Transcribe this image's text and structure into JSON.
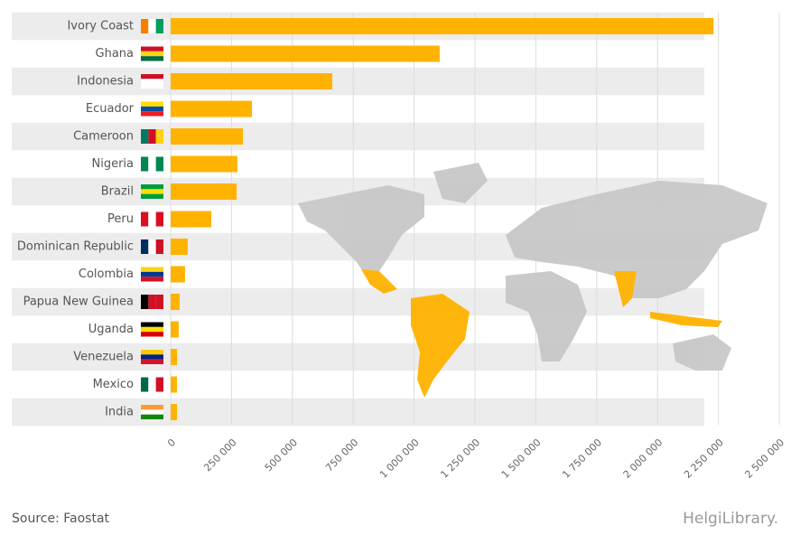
{
  "chart_data": {
    "type": "bar",
    "orientation": "horizontal",
    "categories": [
      "Ivory Coast",
      "Ghana",
      "Indonesia",
      "Ecuador",
      "Cameroon",
      "Nigeria",
      "Brazil",
      "Peru",
      "Dominican Republic",
      "Colombia",
      "Papua New Guinea",
      "Uganda",
      "Venezuela",
      "Mexico",
      "India"
    ],
    "values": [
      2230000,
      1105000,
      664000,
      334000,
      297000,
      274000,
      271000,
      167000,
      70000,
      59000,
      37000,
      33000,
      26000,
      26000,
      26000
    ],
    "color": "#ffb300",
    "xlim": [
      0,
      2500000
    ],
    "xticks": [
      0,
      {
        "value": 250000,
        "label": "250 000"
      },
      {
        "value": 500000,
        "label": "500 000"
      },
      {
        "value": 750000,
        "label": "750 000"
      },
      {
        "value": 1000000,
        "label": "1 000 000"
      },
      {
        "value": 1250000,
        "label": "1 250 000"
      },
      {
        "value": 1500000,
        "label": "1 500 000"
      },
      {
        "value": 1750000,
        "label": "1 750 000"
      },
      {
        "value": 2000000,
        "label": "2 000 000"
      },
      {
        "value": 2250000,
        "label": "2 250 000"
      },
      {
        "value": 2500000,
        "label": "2 500 000"
      }
    ],
    "grid": true,
    "source": "Source: Faostat",
    "logo": "HelgiLibrary."
  }
}
